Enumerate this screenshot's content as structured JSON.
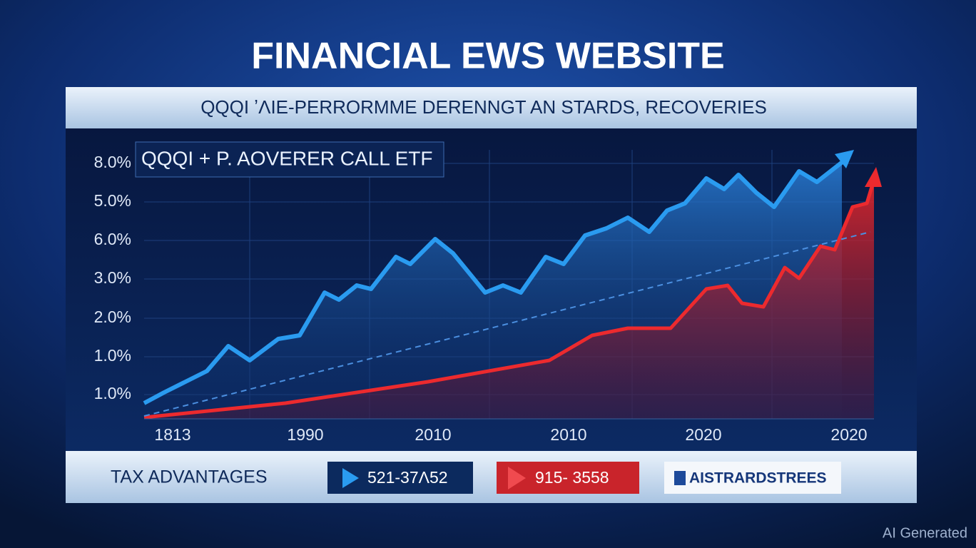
{
  "header": {
    "title": "FINANCIAL EWS WEBSITE",
    "subtitle": "QQQI ʼΛIE-PERRORMME DERENNGT AN STARDS, RECOVERIES"
  },
  "chart": {
    "legend": "QQQI  + P. AOVERER CALL ETF",
    "y_labels": [
      "8.0%",
      "5.0%",
      "6.0%",
      "3.0%",
      "2.0%",
      "1.0%",
      "1.0%"
    ],
    "x_labels": [
      "1813",
      "1990",
      "2010",
      "2010",
      "2020",
      "2020"
    ]
  },
  "footer": {
    "label": "TAX ADVANTAGES",
    "buttons": [
      "521-37Λ52",
      "915- 3558",
      "AISTRARDSTREES"
    ]
  },
  "watermark": "AI Generated"
}
